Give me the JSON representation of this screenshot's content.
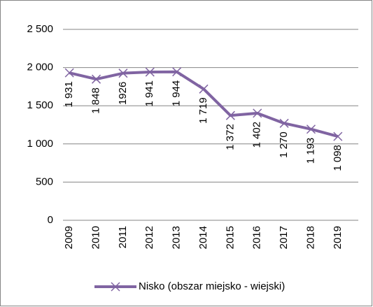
{
  "chart_data": {
    "type": "line",
    "categories": [
      "2009",
      "2010",
      "2011",
      "2012",
      "2013",
      "2014",
      "2015",
      "2016",
      "2017",
      "2018",
      "2019"
    ],
    "series": [
      {
        "name": "Nisko (obszar miejsko - wiejski)",
        "color": "#8064a2",
        "values": [
          1931,
          1848,
          1926,
          1941,
          1944,
          1719,
          1372,
          1402,
          1270,
          1193,
          1098
        ],
        "value_labels": [
          "1 931",
          "1 848",
          "1926",
          "1 941",
          "1 944",
          "1 719",
          "1 372",
          "1 402",
          "1 270",
          "1 193",
          "1 098"
        ]
      }
    ],
    "ylim": [
      0,
      2500
    ],
    "yticks": [
      {
        "value": 0,
        "label": "0"
      },
      {
        "value": 500,
        "label": "500"
      },
      {
        "value": 1000,
        "label": "1 000"
      },
      {
        "value": 1500,
        "label": "1 500"
      },
      {
        "value": 2000,
        "label": "2 000"
      },
      {
        "value": 2500,
        "label": "2 500"
      }
    ],
    "grid": true,
    "legend": "bottom"
  }
}
